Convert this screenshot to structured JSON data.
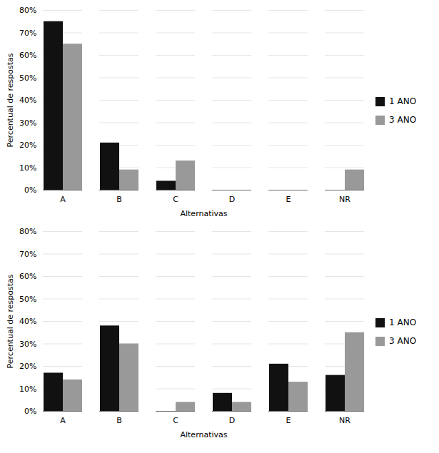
{
  "chart_data": [
    {
      "type": "bar",
      "categories": [
        "A",
        "B",
        "C",
        "D",
        "E",
        "NR"
      ],
      "series": [
        {
          "name": "1 ANO",
          "color": "#111111",
          "values": [
            0.75,
            0.21,
            0.04,
            0,
            0,
            0
          ]
        },
        {
          "name": "3 ANO",
          "color": "#999999",
          "values": [
            0.65,
            0.09,
            0.13,
            0,
            0,
            0.09
          ]
        }
      ],
      "xlabel": "Alternativas",
      "ylabel": "Percentual de respostas",
      "ylim": [
        0,
        0.8
      ],
      "yticks": [
        {
          "value": 0,
          "label": "0%"
        },
        {
          "value": 0.1,
          "label": "10%"
        },
        {
          "value": 0.2,
          "label": "20%"
        },
        {
          "value": 0.3,
          "label": "30%"
        },
        {
          "value": 0.4,
          "label": "40%"
        },
        {
          "value": 0.5,
          "label": "50%"
        },
        {
          "value": 0.6,
          "label": "60%"
        },
        {
          "value": 0.7,
          "label": "70%"
        },
        {
          "value": 0.8,
          "label": "80%"
        }
      ],
      "grid": true,
      "legend": "right"
    },
    {
      "type": "bar",
      "categories": [
        "A",
        "B",
        "C",
        "D",
        "E",
        "NR"
      ],
      "series": [
        {
          "name": "1 ANO",
          "color": "#111111",
          "values": [
            0.17,
            0.38,
            0,
            0.08,
            0.21,
            0.16
          ]
        },
        {
          "name": "3 ANO",
          "color": "#999999",
          "values": [
            0.14,
            0.3,
            0.04,
            0.04,
            0.13,
            0.35
          ]
        }
      ],
      "xlabel": "Alternativas",
      "ylabel": "Percentual de respostas",
      "ylim": [
        0,
        0.8
      ],
      "yticks": [
        {
          "value": 0,
          "label": "0%"
        },
        {
          "value": 0.1,
          "label": "10%"
        },
        {
          "value": 0.2,
          "label": "20%"
        },
        {
          "value": 0.3,
          "label": "30%"
        },
        {
          "value": 0.4,
          "label": "40%"
        },
        {
          "value": 0.5,
          "label": "50%"
        },
        {
          "value": 0.6,
          "label": "60%"
        },
        {
          "value": 0.7,
          "label": "70%"
        },
        {
          "value": 0.8,
          "label": "80%"
        }
      ],
      "grid": true,
      "legend": "right"
    }
  ]
}
